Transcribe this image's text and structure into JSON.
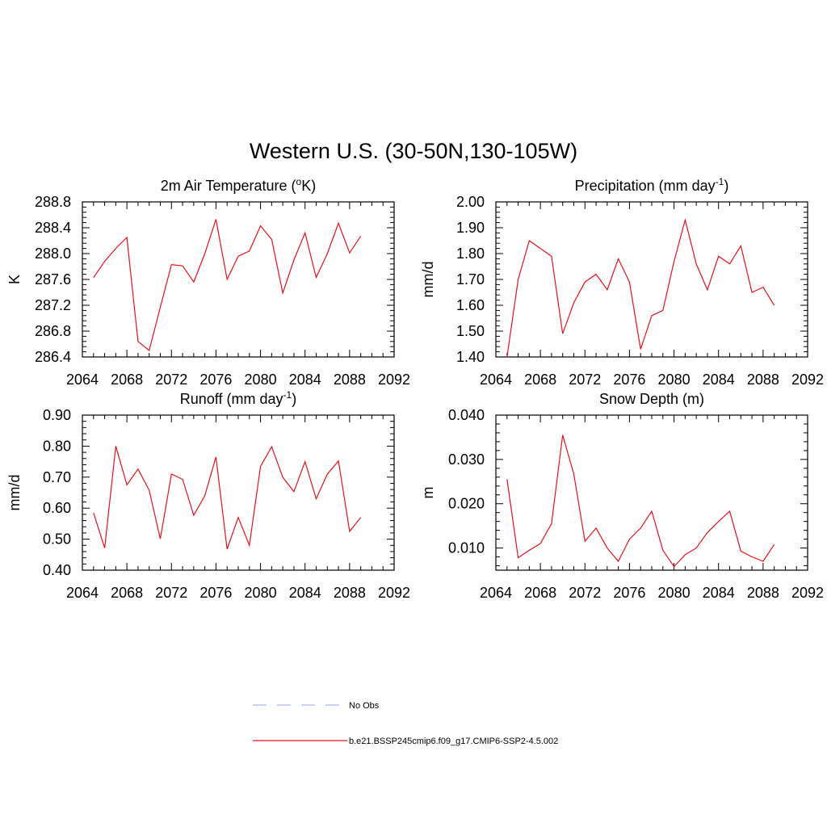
{
  "figure": {
    "title": "Western U.S. (30-50N,130-105W)",
    "line_color": "#e8111a",
    "obs_color": "#aab4f0"
  },
  "legend": {
    "items": [
      {
        "label": "No Obs",
        "style": "dashed",
        "color": "#aab4f0"
      },
      {
        "label": "b.e21.BSSP245cmip6.f09_g17.CMIP6-SSP2-4.5.002",
        "style": "solid",
        "color": "#e8111a"
      }
    ]
  },
  "chart_data": [
    {
      "type": "line",
      "title_main": "2m Air Temperature (",
      "title_sup": "o",
      "title_end": "K)",
      "ylabel": "K",
      "xlim": [
        2064,
        2092
      ],
      "ylim": [
        286.4,
        288.8
      ],
      "xticks": [
        2064,
        2068,
        2072,
        2076,
        2080,
        2084,
        2088,
        2092
      ],
      "yticks": [
        286.4,
        286.8,
        287.2,
        287.6,
        288.0,
        288.4,
        288.8
      ],
      "ytick_labels": [
        "286.4",
        "286.8",
        "287.2",
        "287.6",
        "288.0",
        "288.4",
        "288.8"
      ],
      "x": [
        2065,
        2066,
        2067,
        2068,
        2069,
        2070,
        2071,
        2072,
        2073,
        2074,
        2075,
        2076,
        2077,
        2078,
        2079,
        2080,
        2081,
        2082,
        2083,
        2084,
        2085,
        2086,
        2087,
        2088,
        2089
      ],
      "y": [
        287.63,
        287.88,
        288.08,
        288.25,
        286.64,
        286.5,
        287.17,
        287.83,
        287.81,
        287.56,
        288.0,
        288.53,
        287.6,
        287.96,
        288.04,
        288.43,
        288.22,
        287.39,
        287.9,
        288.32,
        287.63,
        288.0,
        288.47,
        288.01,
        288.27
      ]
    },
    {
      "type": "line",
      "title_main": "Precipitation (mm day",
      "title_sup": "-1",
      "title_end": ")",
      "ylabel": "mm/d",
      "xlim": [
        2064,
        2092
      ],
      "ylim": [
        1.4,
        2.0
      ],
      "xticks": [
        2064,
        2068,
        2072,
        2076,
        2080,
        2084,
        2088,
        2092
      ],
      "yticks": [
        1.4,
        1.5,
        1.6,
        1.7,
        1.8,
        1.9,
        2.0
      ],
      "ytick_labels": [
        "1.40",
        "1.50",
        "1.60",
        "1.70",
        "1.80",
        "1.90",
        "2.00"
      ],
      "x": [
        2065,
        2066,
        2067,
        2068,
        2069,
        2070,
        2071,
        2072,
        2073,
        2074,
        2075,
        2076,
        2077,
        2078,
        2079,
        2080,
        2081,
        2082,
        2083,
        2084,
        2085,
        2086,
        2087,
        2088,
        2089
      ],
      "y": [
        1.4,
        1.7,
        1.85,
        1.82,
        1.79,
        1.49,
        1.61,
        1.69,
        1.72,
        1.66,
        1.78,
        1.69,
        1.43,
        1.56,
        1.58,
        1.77,
        1.93,
        1.76,
        1.66,
        1.79,
        1.76,
        1.83,
        1.65,
        1.67,
        1.6
      ]
    },
    {
      "type": "line",
      "title_main": "Runoff (mm day",
      "title_sup": "-1",
      "title_end": ")",
      "ylabel": "mm/d",
      "xlim": [
        2064,
        2092
      ],
      "ylim": [
        0.4,
        0.9
      ],
      "xticks": [
        2064,
        2068,
        2072,
        2076,
        2080,
        2084,
        2088,
        2092
      ],
      "yticks": [
        0.4,
        0.5,
        0.6,
        0.7,
        0.8,
        0.9
      ],
      "ytick_labels": [
        "0.40",
        "0.50",
        "0.60",
        "0.70",
        "0.80",
        "0.90"
      ],
      "x": [
        2065,
        2066,
        2067,
        2068,
        2069,
        2070,
        2071,
        2072,
        2073,
        2074,
        2075,
        2076,
        2077,
        2078,
        2079,
        2080,
        2081,
        2082,
        2083,
        2084,
        2085,
        2086,
        2087,
        2088,
        2089
      ],
      "y": [
        0.585,
        0.472,
        0.8,
        0.675,
        0.726,
        0.658,
        0.501,
        0.71,
        0.693,
        0.577,
        0.64,
        0.765,
        0.468,
        0.57,
        0.48,
        0.735,
        0.798,
        0.7,
        0.653,
        0.75,
        0.63,
        0.71,
        0.752,
        0.525,
        0.57
      ]
    },
    {
      "type": "line",
      "title_main": "Snow Depth (m)",
      "title_sup": "",
      "title_end": "",
      "ylabel": "m",
      "xlim": [
        2064,
        2092
      ],
      "ylim": [
        0.005,
        0.04
      ],
      "xticks": [
        2064,
        2068,
        2072,
        2076,
        2080,
        2084,
        2088,
        2092
      ],
      "yticks": [
        0.01,
        0.02,
        0.03,
        0.04
      ],
      "ytick_labels": [
        "0.010",
        "0.020",
        "0.030",
        "0.040"
      ],
      "x": [
        2065,
        2066,
        2067,
        2068,
        2069,
        2070,
        2071,
        2072,
        2073,
        2074,
        2075,
        2076,
        2077,
        2078,
        2079,
        2080,
        2081,
        2082,
        2083,
        2084,
        2085,
        2086,
        2087,
        2088,
        2089
      ],
      "y": [
        0.0255,
        0.0078,
        0.0095,
        0.011,
        0.0155,
        0.0355,
        0.0267,
        0.0115,
        0.0145,
        0.01,
        0.007,
        0.012,
        0.0145,
        0.0183,
        0.0095,
        0.0058,
        0.0085,
        0.01,
        0.0135,
        0.016,
        0.0183,
        0.0093,
        0.008,
        0.007,
        0.0108
      ]
    }
  ]
}
